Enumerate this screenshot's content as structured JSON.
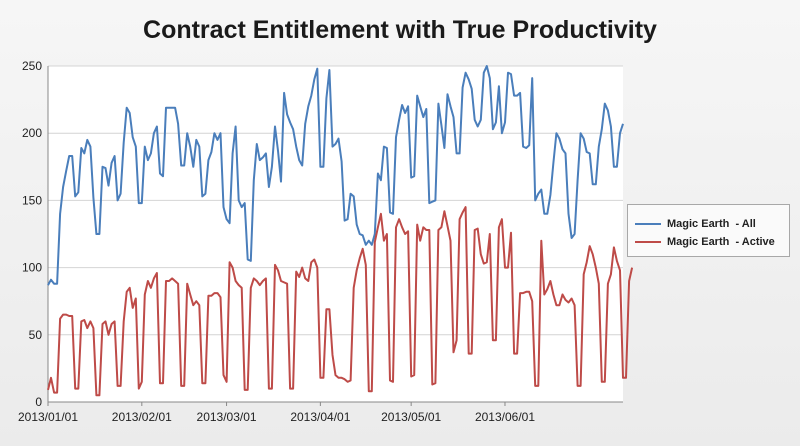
{
  "chart_data": {
    "type": "line",
    "title": "Contract Entitlement with True Productivity",
    "ylim": [
      0,
      250
    ],
    "yticks": [
      0,
      50,
      100,
      150,
      200,
      250
    ],
    "x_tick_labels": [
      "2013/01/01",
      "2013/02/01",
      "2013/03/01",
      "2013/04/01",
      "2013/05/01",
      "2013/06/01"
    ],
    "x_start": "2013/01/01",
    "x_end": "2013/06/30",
    "grid": true,
    "legend_position": "right",
    "series": [
      {
        "name": "Magic Earth  - All",
        "color": "#4a7ebb",
        "values": [
          87,
          91,
          88,
          88,
          140,
          160,
          172,
          183,
          183,
          153,
          156,
          189,
          185,
          195,
          190,
          152,
          125,
          125,
          175,
          174,
          161,
          178,
          183,
          150,
          155,
          193,
          219,
          215,
          197,
          190,
          148,
          148,
          190,
          180,
          185,
          200,
          205,
          170,
          168,
          219,
          219,
          219,
          219,
          207,
          176,
          176,
          200,
          190,
          175,
          195,
          190,
          153,
          155,
          180,
          186,
          200,
          195,
          200,
          145,
          136,
          133,
          185,
          205,
          150,
          145,
          148,
          106,
          105,
          165,
          192,
          180,
          182,
          185,
          160,
          175,
          205,
          187,
          164,
          230,
          214,
          208,
          203,
          190,
          180,
          176,
          207,
          220,
          228,
          240,
          248,
          175,
          175,
          226,
          247,
          190,
          192,
          196,
          179,
          135,
          136,
          155,
          153,
          132,
          125,
          124,
          117,
          120,
          117,
          125,
          170,
          165,
          190,
          189,
          141,
          140,
          197,
          210,
          221,
          215,
          220,
          167,
          168,
          228,
          220,
          212,
          218,
          148,
          149,
          150,
          222,
          206,
          189,
          229,
          220,
          212,
          185,
          185,
          234,
          245,
          240,
          233,
          210,
          205,
          210,
          245,
          250,
          241,
          203,
          208,
          235,
          200,
          208,
          245,
          244,
          228,
          228,
          230,
          190,
          189,
          191,
          241,
          150,
          155,
          158,
          140,
          140,
          154,
          178,
          200,
          196,
          188,
          185,
          140,
          122,
          125,
          165,
          200,
          196,
          186,
          185,
          162,
          162,
          190,
          203,
          222,
          217,
          205,
          175,
          175,
          200,
          207
        ]
      },
      {
        "name": "Magic Earth  - Active",
        "color": "#be4b48",
        "values": [
          9,
          18,
          7,
          7,
          62,
          65,
          65,
          64,
          64,
          10,
          10,
          60,
          61,
          55,
          60,
          55,
          5,
          5,
          58,
          60,
          50,
          58,
          60,
          12,
          12,
          60,
          82,
          85,
          70,
          77,
          10,
          15,
          80,
          90,
          85,
          92,
          96,
          14,
          14,
          90,
          90,
          92,
          90,
          88,
          12,
          12,
          88,
          80,
          72,
          75,
          72,
          14,
          14,
          79,
          79,
          81,
          81,
          78,
          20,
          15,
          104,
          100,
          90,
          87,
          85,
          9,
          9,
          85,
          92,
          90,
          87,
          90,
          92,
          10,
          10,
          102,
          98,
          90,
          89,
          88,
          10,
          10,
          97,
          93,
          100,
          92,
          90,
          104,
          106,
          100,
          18,
          18,
          69,
          69,
          35,
          20,
          18,
          18,
          17,
          15,
          16,
          85,
          98,
          107,
          114,
          102,
          8,
          8,
          119,
          130,
          140,
          120,
          125,
          16,
          15,
          130,
          136,
          130,
          125,
          127,
          19,
          20,
          132,
          120,
          130,
          128,
          128,
          13,
          14,
          128,
          130,
          142,
          131,
          120,
          37,
          46,
          136,
          141,
          145,
          36,
          36,
          128,
          129,
          110,
          103,
          104,
          125,
          46,
          46,
          130,
          136,
          100,
          100,
          126,
          36,
          36,
          81,
          81,
          82,
          82,
          75,
          12,
          12,
          120,
          80,
          84,
          90,
          80,
          72,
          72,
          80,
          76,
          74,
          77,
          72,
          12,
          12,
          95,
          104,
          116,
          110,
          100,
          88,
          15,
          15,
          88,
          95,
          115,
          105,
          98,
          18,
          18,
          90,
          100
        ]
      }
    ]
  }
}
